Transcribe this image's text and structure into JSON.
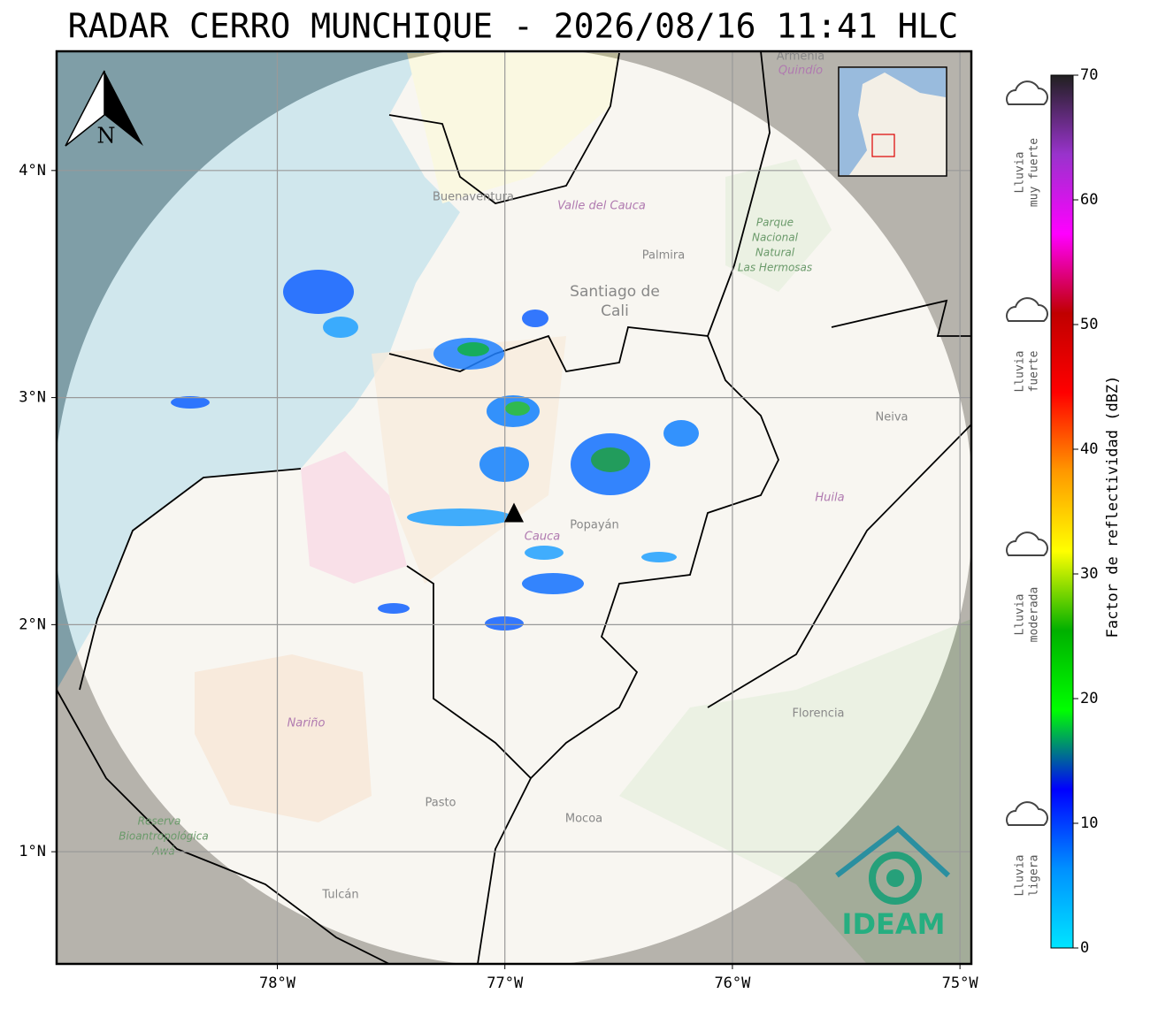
{
  "title": "RADAR CERRO MUNCHIQUE - 2026/08/16 11:41 HLC",
  "map": {
    "xlim": [
      -78.97,
      -74.95
    ],
    "ylim": [
      0.506,
      4.525
    ],
    "xticks": [
      {
        "value": -78,
        "label": "78°W"
      },
      {
        "value": -77,
        "label": "77°W"
      },
      {
        "value": -76,
        "label": "76°W"
      },
      {
        "value": -75,
        "label": "75°W"
      }
    ],
    "yticks": [
      {
        "value": 1,
        "label": "1°N"
      },
      {
        "value": 2,
        "label": "2°N"
      },
      {
        "value": 3,
        "label": "3°N"
      },
      {
        "value": 4,
        "label": "4°N"
      }
    ],
    "grid": true,
    "radar": {
      "lon": -76.96,
      "lat": 2.49
    },
    "north_label": "N",
    "places": [
      "Buenaventura",
      "Valle del Cauca",
      "Santiago de",
      "Cali",
      "Palmira",
      "Neiva",
      "Huila",
      "Popayán",
      "Cauca",
      "Florencia",
      "Nariño",
      "Pasto",
      "Mocoa",
      "Tulcán",
      "Armenia",
      "Quindío"
    ],
    "parks": [
      "Parque",
      "Nacional",
      "Natural",
      "Las Hermosas",
      "Reserva",
      "Bioantropológica",
      "Awá"
    ],
    "logo": "IDEAM"
  },
  "colorbar": {
    "label": "Factor de reflectividad (dBZ)",
    "lim": [
      0,
      70
    ],
    "ticks": [
      0,
      10,
      20,
      30,
      40,
      50,
      60,
      70
    ],
    "colors": [
      "#00e5ff",
      "#0090ff",
      "#0000ff",
      "#00ff00",
      "#00b000",
      "#ffff00",
      "#ff9900",
      "#ff0000",
      "#c00000",
      "#ff00ff",
      "#9933cc",
      "#202020"
    ]
  },
  "categories": [
    {
      "lines": [
        "Lluvia",
        "muy fuerte"
      ]
    },
    {
      "lines": [
        "Lluvia",
        "fuerte"
      ]
    },
    {
      "lines": [
        "Lluvia",
        "moderada"
      ]
    },
    {
      "lines": [
        "Lluvia",
        "ligera"
      ]
    }
  ]
}
